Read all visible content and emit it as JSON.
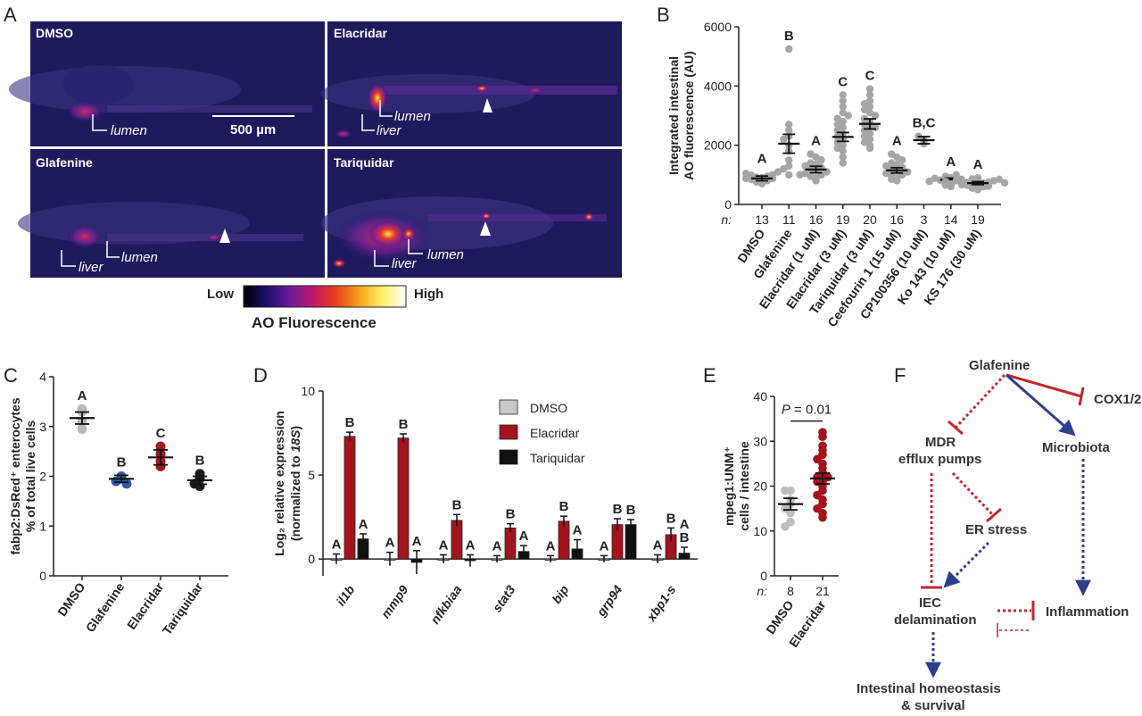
{
  "panels": {
    "A": {
      "label": "A",
      "images": [
        {
          "title": "DMSO",
          "annotations": [
            "lumen"
          ],
          "scale_bar": "500 µm"
        },
        {
          "title": "Elacridar",
          "annotations": [
            "lumen",
            "liver"
          ]
        },
        {
          "title": "Glafenine",
          "annotations": [
            "liver",
            "lumen"
          ]
        },
        {
          "title": "Tariquidar",
          "annotations": [
            "liver",
            "lumen"
          ]
        }
      ],
      "colorbar": {
        "low": "Low",
        "high": "High",
        "label": "AO Fluorescence",
        "colors": [
          "#000000",
          "#1c0f6e",
          "#6a1c9a",
          "#c0186a",
          "#e9401a",
          "#f7a41a",
          "#fff26a",
          "#ffffff"
        ]
      }
    },
    "F": {
      "label": "F",
      "nodes": {
        "glafenine": "Glafenine",
        "cox": "COX1/2",
        "mdr1": "MDR",
        "mdr2": "efflux pumps",
        "microbiota": "Microbiota",
        "er": "ER stress",
        "iec1": "IEC",
        "iec2": "delamination",
        "inflammation": "Inflammation",
        "homeo1": "Intestinal homeostasis",
        "homeo2": "& survival"
      },
      "colors": {
        "inhibit": "#c0272d",
        "activate": "#2c3e8c"
      }
    }
  },
  "chart_data": [
    {
      "panel": "B",
      "type": "scatter",
      "ylabel": [
        "Integrated intestinal",
        "AO fluorescence (AU)"
      ],
      "ylim": [
        0,
        6000
      ],
      "yticks": [
        0,
        2000,
        4000,
        6000
      ],
      "n_label": "n:",
      "categories": [
        "DMSO",
        "Glafenine",
        "Elacridar (1 uM)",
        "Elacridar (3 uM)",
        "Tariquidar (3 uM)",
        "Ceefourin 1 (15 uM)",
        "CP100356 (10 uM)",
        "Ko 143 (10 uM)",
        "KS 176 (30 uM)"
      ],
      "n": [
        "13",
        "11",
        "16",
        "19",
        "20",
        "16",
        "3",
        "14",
        "19"
      ],
      "mean": [
        880,
        2050,
        1180,
        2280,
        2720,
        1150,
        2170,
        830,
        720
      ],
      "sem": [
        80,
        320,
        110,
        150,
        170,
        90,
        120,
        60,
        50
      ],
      "groups": [
        "A",
        "B",
        "A",
        "C",
        "C",
        "A",
        "B,C",
        "A",
        "A"
      ],
      "points": [
        [
          700,
          760,
          800,
          840,
          870,
          880,
          900,
          920,
          950,
          980,
          1000,
          1050,
          1100
        ],
        [
          5250,
          2700,
          2300,
          2200,
          2000,
          1800,
          1500,
          1300,
          1200,
          1000,
          2500
        ],
        [
          800,
          900,
          950,
          1000,
          1050,
          1100,
          1150,
          1200,
          1250,
          1300,
          1350,
          1400,
          1500,
          1600,
          1700,
          1000
        ],
        [
          1400,
          1600,
          1800,
          1900,
          2000,
          2100,
          2200,
          2300,
          2400,
          2500,
          2600,
          2700,
          2800,
          2900,
          3000,
          3100,
          3300,
          3500,
          3700
        ],
        [
          1900,
          2000,
          2200,
          2300,
          2400,
          2500,
          2600,
          2700,
          2800,
          2900,
          3000,
          3100,
          3200,
          3300,
          3400,
          3500,
          3700,
          3900,
          2100,
          2600
        ],
        [
          800,
          850,
          900,
          950,
          1000,
          1050,
          1100,
          1150,
          1200,
          1250,
          1300,
          1350,
          1400,
          1500,
          1600,
          1700
        ],
        [
          2050,
          2170,
          2300
        ],
        [
          600,
          650,
          700,
          750,
          800,
          820,
          850,
          880,
          900,
          950,
          1000,
          700,
          780,
          860
        ],
        [
          500,
          550,
          600,
          650,
          680,
          700,
          720,
          740,
          760,
          780,
          800,
          820,
          850,
          900,
          620,
          660,
          690,
          730,
          770
        ]
      ],
      "color": "#a6a6a6"
    },
    {
      "panel": "C",
      "type": "scatter",
      "ylabel": [
        "fabp2:DsRed⁺ enterocytes",
        "% of total live cells"
      ],
      "ylim": [
        0,
        4
      ],
      "yticks": [
        0,
        1,
        2,
        3,
        4
      ],
      "categories": [
        "DMSO",
        "Glafenine",
        "Elacridar",
        "Tariquidar"
      ],
      "mean": [
        3.17,
        1.95,
        2.38,
        1.92
      ],
      "sem": [
        0.12,
        0.07,
        0.15,
        0.08
      ],
      "groups": [
        "A",
        "B",
        "C",
        "B"
      ],
      "points": [
        [
          3.35,
          3.3,
          3.1,
          2.95
        ],
        [
          2.0,
          1.95,
          1.9,
          1.85
        ],
        [
          2.6,
          2.45,
          2.3,
          2.2
        ],
        [
          2.05,
          1.95,
          1.85,
          1.8
        ]
      ],
      "colors": [
        "#b8b8b8",
        "#2e5aa8",
        "#a3141c",
        "#1a1a1a"
      ]
    },
    {
      "panel": "D",
      "type": "bar",
      "ylabel": "Log₂ relative expression",
      "ylabel2_pre": "(normalized to ",
      "ylabel2_it": "18S",
      "ylabel2_post": ")",
      "ylim": [
        -1,
        10
      ],
      "yticks": [
        0,
        5,
        10
      ],
      "categories": [
        "il1b",
        "mmp9",
        "nfkbiaa",
        "stat3",
        "bip",
        "grp94",
        "xbp1-s"
      ],
      "series": [
        {
          "name": "DMSO",
          "color": "#c8c8c8",
          "values": [
            0,
            0,
            0,
            0,
            0,
            0,
            0
          ],
          "err": [
            0.3,
            0.4,
            0.25,
            0.2,
            0.2,
            0.2,
            0.25
          ]
        },
        {
          "name": "Elacridar",
          "color": "#a3141c",
          "values": [
            7.3,
            7.2,
            2.3,
            1.85,
            2.25,
            2.05,
            1.45
          ],
          "err": [
            0.25,
            0.25,
            0.35,
            0.25,
            0.3,
            0.35,
            0.4
          ]
        },
        {
          "name": "Tariquidar",
          "color": "#111111",
          "values": [
            1.2,
            -0.2,
            -0.1,
            0.45,
            0.6,
            2.05,
            0.35
          ],
          "err": [
            0.3,
            0.7,
            0.35,
            0.35,
            0.55,
            0.3,
            0.35
          ]
        }
      ],
      "groups": [
        [
          "A",
          "B",
          "A"
        ],
        [
          "A",
          "B",
          "A"
        ],
        [
          "A",
          "B",
          "A"
        ],
        [
          "A",
          "B",
          "A"
        ],
        [
          "A",
          "B",
          "A"
        ],
        [
          "A",
          "B",
          "B"
        ],
        [
          "A",
          "B",
          "A,B"
        ]
      ]
    },
    {
      "panel": "E",
      "type": "scatter",
      "ylabel": [
        "mpeg1:UNM⁺",
        "cells / intestine"
      ],
      "ylim": [
        0,
        40
      ],
      "yticks": [
        0,
        10,
        20,
        30,
        40
      ],
      "n_label": "n:",
      "categories": [
        "DMSO",
        "Elacridar"
      ],
      "n": [
        "8",
        "21"
      ],
      "mean": [
        16,
        21.7
      ],
      "sem": [
        1.3,
        1.2
      ],
      "pvalue_pre": "P",
      "pvalue_post": " = 0.01",
      "points": [
        [
          19,
          19,
          17,
          16,
          15,
          14,
          12,
          11
        ],
        [
          32,
          31,
          29,
          28,
          27,
          26,
          25,
          24,
          23,
          22,
          22,
          21,
          20,
          19,
          18,
          17,
          16,
          15,
          14,
          13,
          21
        ]
      ],
      "colors": [
        "#bdbdbd",
        "#a3141c"
      ]
    }
  ]
}
